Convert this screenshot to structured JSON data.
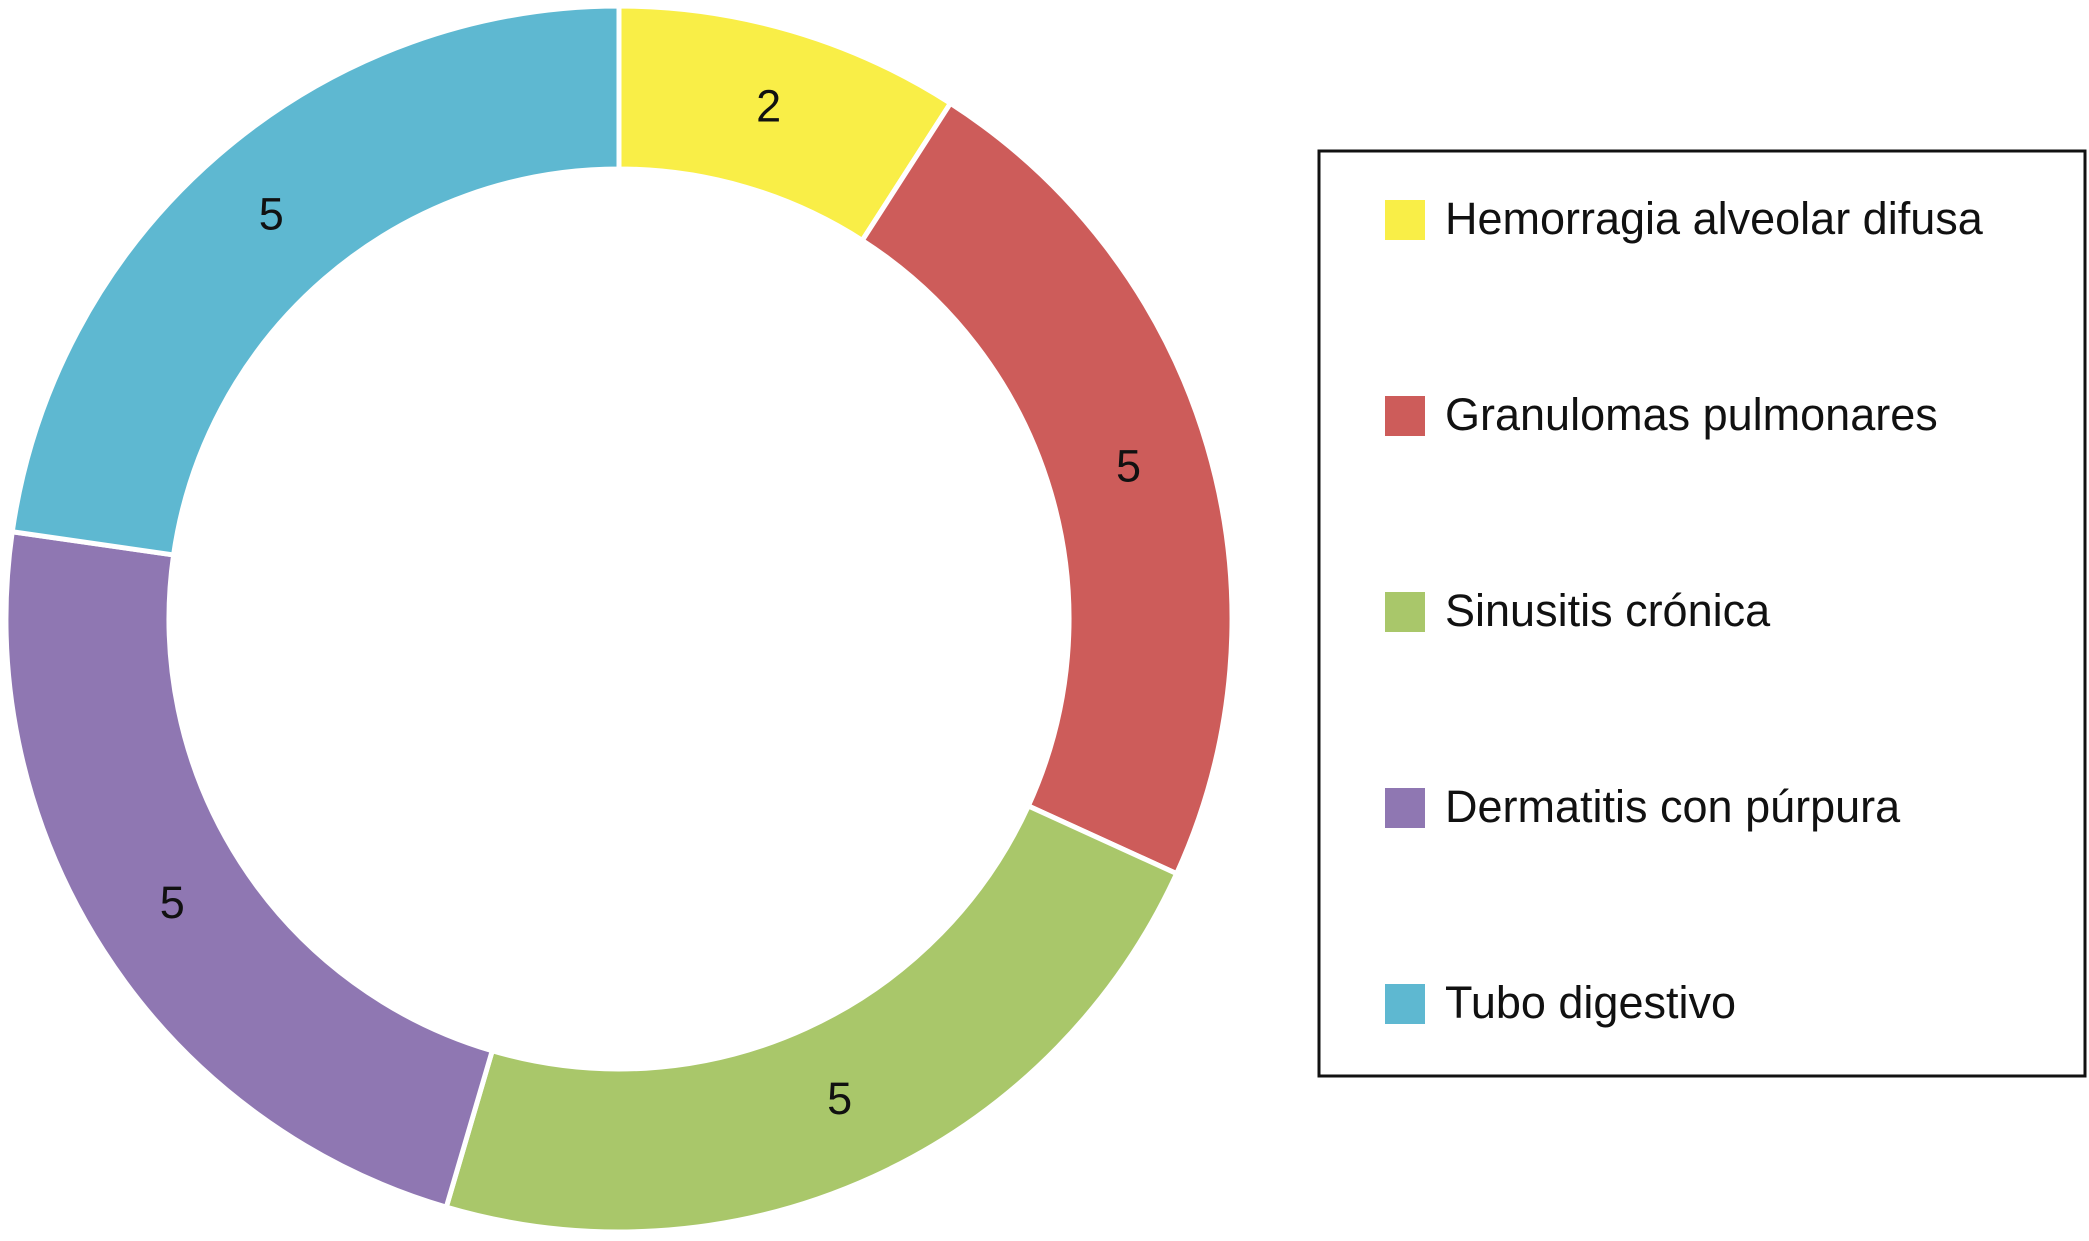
{
  "chart_data": {
    "type": "donut",
    "categories": [
      "Hemorragia alveolar difusa",
      "Granulomas pulmonares",
      "Sinusitis crónica",
      "Dermatitis con púrpura",
      "Tubo digestivo"
    ],
    "values": [
      2,
      5,
      5,
      5,
      5
    ],
    "colors": [
      "#f9ee47",
      "#cd5c5a",
      "#a9c76a",
      "#8f77b2",
      "#5eb8d1"
    ],
    "legend": "right"
  }
}
